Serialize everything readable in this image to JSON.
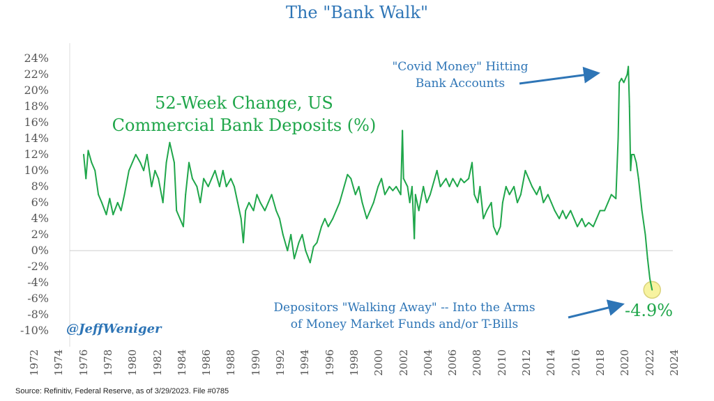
{
  "title": "The \"Bank Walk\"",
  "source": "Source: Refinitiv, Federal Reserve, as of 3/29/2023. File #0785",
  "handle": "@JeffWeniger",
  "colors": {
    "line": "#1fa64a",
    "title": "#2e75b6",
    "annotation": "#2e75b6",
    "highlight": "#f7f3a0"
  },
  "annotations": {
    "covid_line1": "\"Covid Money\" Hitting",
    "covid_line2": "Bank Accounts",
    "walk_line1": "Depositors \"Walking Away\" -- Into the Arms",
    "walk_line2": "of Money Market Funds and/or T-Bills",
    "last_value": "-4.9%"
  },
  "chart_data": {
    "type": "line",
    "title": "The \"Bank Walk\"",
    "series_label_line1": "52-Week Change, US",
    "series_label_line2": "Commercial Bank Deposits (%)",
    "xlabel": "",
    "ylabel": "",
    "ylim": [
      -10,
      24
    ],
    "xlim": [
      1972,
      2024
    ],
    "y_ticks": [
      "24%",
      "22%",
      "20%",
      "18%",
      "16%",
      "14%",
      "12%",
      "10%",
      "8%",
      "6%",
      "4%",
      "2%",
      "0%",
      "-2%",
      "-4%",
      "-6%",
      "-8%",
      "-10%"
    ],
    "x_ticks": [
      "1972",
      "1974",
      "1976",
      "1978",
      "1980",
      "1982",
      "1984",
      "1986",
      "1988",
      "1990",
      "1992",
      "1994",
      "1996",
      "1998",
      "2000",
      "2002",
      "2004",
      "2006",
      "2008",
      "2010",
      "2012",
      "2014",
      "2016",
      "2018",
      "2020",
      "2022",
      "2024"
    ],
    "grid": "zero-line only",
    "series": [
      {
        "name": "52-Week Change, US Commercial Bank Deposits (%)",
        "points": [
          [
            1973.0,
            12
          ],
          [
            1973.2,
            9
          ],
          [
            1973.4,
            12.5
          ],
          [
            1973.7,
            11
          ],
          [
            1974.0,
            10
          ],
          [
            1974.3,
            7
          ],
          [
            1974.6,
            6
          ],
          [
            1975.0,
            4.5
          ],
          [
            1975.3,
            6.5
          ],
          [
            1975.6,
            4.5
          ],
          [
            1976.0,
            6
          ],
          [
            1976.3,
            5
          ],
          [
            1976.6,
            7
          ],
          [
            1977.0,
            10
          ],
          [
            1977.3,
            11
          ],
          [
            1977.6,
            12
          ],
          [
            1978.0,
            11
          ],
          [
            1978.3,
            10
          ],
          [
            1978.6,
            12
          ],
          [
            1979.0,
            8
          ],
          [
            1979.3,
            10
          ],
          [
            1979.6,
            9
          ],
          [
            1980.0,
            6
          ],
          [
            1980.3,
            11
          ],
          [
            1980.6,
            13.5
          ],
          [
            1981.0,
            11
          ],
          [
            1981.2,
            5
          ],
          [
            1981.5,
            4
          ],
          [
            1981.8,
            3
          ],
          [
            1982.0,
            7
          ],
          [
            1982.3,
            11
          ],
          [
            1982.6,
            9
          ],
          [
            1983.0,
            8
          ],
          [
            1983.3,
            6
          ],
          [
            1983.6,
            9
          ],
          [
            1984.0,
            8
          ],
          [
            1984.3,
            9
          ],
          [
            1984.6,
            10
          ],
          [
            1985.0,
            8
          ],
          [
            1985.3,
            10
          ],
          [
            1985.6,
            8
          ],
          [
            1986.0,
            9
          ],
          [
            1986.3,
            8
          ],
          [
            1986.6,
            6
          ],
          [
            1986.9,
            4
          ],
          [
            1987.1,
            1
          ],
          [
            1987.3,
            5
          ],
          [
            1987.6,
            6
          ],
          [
            1988.0,
            5
          ],
          [
            1988.3,
            7
          ],
          [
            1988.6,
            6
          ],
          [
            1989.0,
            5
          ],
          [
            1989.3,
            6
          ],
          [
            1989.6,
            7
          ],
          [
            1990.0,
            5
          ],
          [
            1990.3,
            4
          ],
          [
            1990.6,
            2
          ],
          [
            1991.0,
            0
          ],
          [
            1991.3,
            2
          ],
          [
            1991.6,
            -1
          ],
          [
            1992.0,
            1
          ],
          [
            1992.3,
            2
          ],
          [
            1992.6,
            0
          ],
          [
            1993.0,
            -1.5
          ],
          [
            1993.3,
            0.5
          ],
          [
            1993.6,
            1
          ],
          [
            1994.0,
            3
          ],
          [
            1994.3,
            4
          ],
          [
            1994.6,
            3
          ],
          [
            1995.0,
            4
          ],
          [
            1995.3,
            5
          ],
          [
            1995.6,
            6
          ],
          [
            1996.0,
            8
          ],
          [
            1996.3,
            9.5
          ],
          [
            1996.6,
            9
          ],
          [
            1997.0,
            7
          ],
          [
            1997.3,
            8
          ],
          [
            1997.6,
            6
          ],
          [
            1998.0,
            4
          ],
          [
            1998.3,
            5
          ],
          [
            1998.6,
            6
          ],
          [
            1999.0,
            8
          ],
          [
            1999.3,
            9
          ],
          [
            1999.6,
            7
          ],
          [
            2000.0,
            8
          ],
          [
            2000.3,
            7.5
          ],
          [
            2000.6,
            8
          ],
          [
            2001.0,
            7
          ],
          [
            2001.15,
            15
          ],
          [
            2001.25,
            9
          ],
          [
            2001.6,
            8
          ],
          [
            2001.8,
            6
          ],
          [
            2002.0,
            8
          ],
          [
            2002.2,
            1.5
          ],
          [
            2002.3,
            7
          ],
          [
            2002.6,
            5
          ],
          [
            2003.0,
            8
          ],
          [
            2003.3,
            6
          ],
          [
            2003.6,
            7
          ],
          [
            2004.0,
            9
          ],
          [
            2004.2,
            10
          ],
          [
            2004.5,
            8
          ],
          [
            2005.0,
            9
          ],
          [
            2005.3,
            8
          ],
          [
            2005.6,
            9
          ],
          [
            2006.0,
            8
          ],
          [
            2006.3,
            9
          ],
          [
            2006.6,
            8.5
          ],
          [
            2007.0,
            9
          ],
          [
            2007.3,
            11
          ],
          [
            2007.5,
            7
          ],
          [
            2007.8,
            6
          ],
          [
            2008.0,
            8
          ],
          [
            2008.3,
            4
          ],
          [
            2008.6,
            5
          ],
          [
            2009.0,
            6
          ],
          [
            2009.2,
            3
          ],
          [
            2009.5,
            2
          ],
          [
            2009.8,
            3
          ],
          [
            2010.0,
            6
          ],
          [
            2010.3,
            8
          ],
          [
            2010.6,
            7
          ],
          [
            2011.0,
            8
          ],
          [
            2011.3,
            6
          ],
          [
            2011.6,
            7
          ],
          [
            2012.0,
            10
          ],
          [
            2012.3,
            9
          ],
          [
            2012.6,
            8
          ],
          [
            2013.0,
            7
          ],
          [
            2013.3,
            8
          ],
          [
            2013.6,
            6
          ],
          [
            2014.0,
            7
          ],
          [
            2014.3,
            6
          ],
          [
            2014.6,
            5
          ],
          [
            2015.0,
            4
          ],
          [
            2015.3,
            5
          ],
          [
            2015.6,
            4
          ],
          [
            2016.0,
            5
          ],
          [
            2016.3,
            4
          ],
          [
            2016.6,
            3
          ],
          [
            2017.0,
            4
          ],
          [
            2017.3,
            3
          ],
          [
            2017.6,
            3.5
          ],
          [
            2018.0,
            3
          ],
          [
            2018.3,
            4
          ],
          [
            2018.6,
            5
          ],
          [
            2019.0,
            5
          ],
          [
            2019.3,
            6
          ],
          [
            2019.6,
            7
          ],
          [
            2020.0,
            6.5
          ],
          [
            2020.2,
            14
          ],
          [
            2020.3,
            21
          ],
          [
            2020.5,
            21.5
          ],
          [
            2020.7,
            21
          ],
          [
            2021.0,
            22
          ],
          [
            2021.1,
            23
          ],
          [
            2021.2,
            18
          ],
          [
            2021.3,
            10
          ],
          [
            2021.4,
            12
          ],
          [
            2021.6,
            12
          ],
          [
            2021.8,
            11
          ],
          [
            2022.0,
            9
          ],
          [
            2022.3,
            5
          ],
          [
            2022.6,
            2
          ],
          [
            2022.8,
            -1
          ],
          [
            2023.0,
            -3.5
          ],
          [
            2023.2,
            -4.9
          ]
        ]
      }
    ]
  }
}
